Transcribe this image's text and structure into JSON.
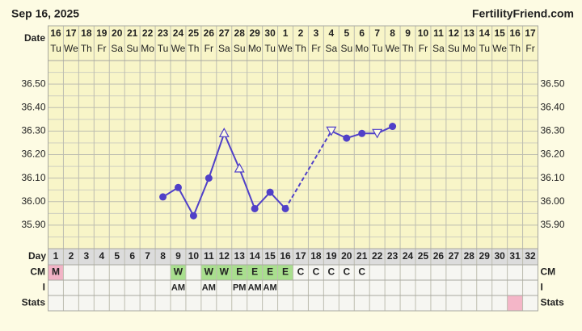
{
  "header": {
    "date": "Sep 16, 2025",
    "site": "FertilityFriend.com"
  },
  "chart_data": {
    "type": "line",
    "row_labels": {
      "date": "Date",
      "day": "Day",
      "cm": "CM",
      "i": "I",
      "stats": "Stats"
    },
    "dates": [
      16,
      17,
      18,
      19,
      20,
      21,
      22,
      23,
      24,
      25,
      26,
      27,
      28,
      29,
      30,
      1,
      2,
      3,
      4,
      5,
      6,
      7,
      8,
      9,
      10,
      11,
      12,
      13,
      14,
      15,
      16,
      17
    ],
    "weekdays": [
      "Tu",
      "We",
      "Th",
      "Fr",
      "Sa",
      "Su",
      "Mo",
      "Tu",
      "We",
      "Th",
      "Fr",
      "Sa",
      "Su",
      "Mo",
      "Tu",
      "We",
      "Th",
      "Fr",
      "Sa",
      "Su",
      "Mo",
      "Tu",
      "We",
      "Th",
      "Fr",
      "Sa",
      "Su",
      "Mo",
      "Tu",
      "We",
      "Th",
      "Fr"
    ],
    "days": [
      1,
      2,
      3,
      4,
      5,
      6,
      7,
      8,
      9,
      10,
      11,
      12,
      13,
      14,
      15,
      16,
      17,
      18,
      19,
      20,
      21,
      22,
      23,
      24,
      25,
      26,
      27,
      28,
      29,
      30,
      31,
      32
    ],
    "ylim": [
      35.8,
      36.6
    ],
    "yticks": [
      {
        "value": 35.9,
        "label": "35.90"
      },
      {
        "value": 36.0,
        "label": "36.00"
      },
      {
        "value": 36.1,
        "label": "36.10"
      },
      {
        "value": 36.2,
        "label": "36.20"
      },
      {
        "value": 36.3,
        "label": "36.30"
      },
      {
        "value": 36.4,
        "label": "36.40"
      },
      {
        "value": 36.5,
        "label": "36.50"
      }
    ],
    "grid": true,
    "gap_style": "dashed",
    "series": [
      {
        "color": "#5040c8",
        "values": [
          null,
          null,
          null,
          null,
          null,
          null,
          null,
          36.02,
          36.06,
          35.94,
          36.1,
          36.29,
          36.14,
          35.97,
          36.04,
          35.97,
          null,
          null,
          36.3,
          36.27,
          36.29,
          36.29,
          36.32,
          null,
          null,
          null,
          null,
          null,
          null,
          null,
          null,
          null
        ],
        "markers": [
          null,
          null,
          null,
          null,
          null,
          null,
          null,
          "dot",
          "dot",
          "dot",
          "dot",
          "triangle-up",
          "triangle-up",
          "dot",
          "dot",
          "dot",
          null,
          null,
          "triangle-down",
          "dot",
          "dot",
          "triangle-down",
          "dot",
          null,
          null,
          null,
          null,
          null,
          null,
          null,
          null,
          null
        ]
      }
    ],
    "cm": [
      "M",
      null,
      null,
      null,
      null,
      null,
      null,
      null,
      "W",
      null,
      "W",
      "W",
      "E",
      "E",
      "E",
      "E",
      "C",
      "C",
      "C",
      "C",
      "C",
      null,
      null,
      null,
      null,
      null,
      null,
      null,
      null,
      null,
      null,
      null
    ],
    "cm_colors": {
      "M": "#f2b3c6",
      "W": "#a9df8e",
      "E": "#a9df8e"
    },
    "intercourse": [
      null,
      null,
      null,
      null,
      null,
      null,
      null,
      null,
      "AM",
      null,
      "AM",
      null,
      "PM",
      "AM",
      "AM",
      null,
      null,
      null,
      null,
      null,
      null,
      null,
      null,
      null,
      null,
      null,
      null,
      null,
      null,
      null,
      null,
      null
    ],
    "stats_colors": [
      null,
      null,
      null,
      null,
      null,
      null,
      null,
      null,
      null,
      null,
      null,
      null,
      null,
      null,
      null,
      null,
      null,
      null,
      null,
      null,
      null,
      null,
      null,
      null,
      null,
      null,
      null,
      null,
      null,
      null,
      "#f4b6c8",
      null
    ]
  }
}
